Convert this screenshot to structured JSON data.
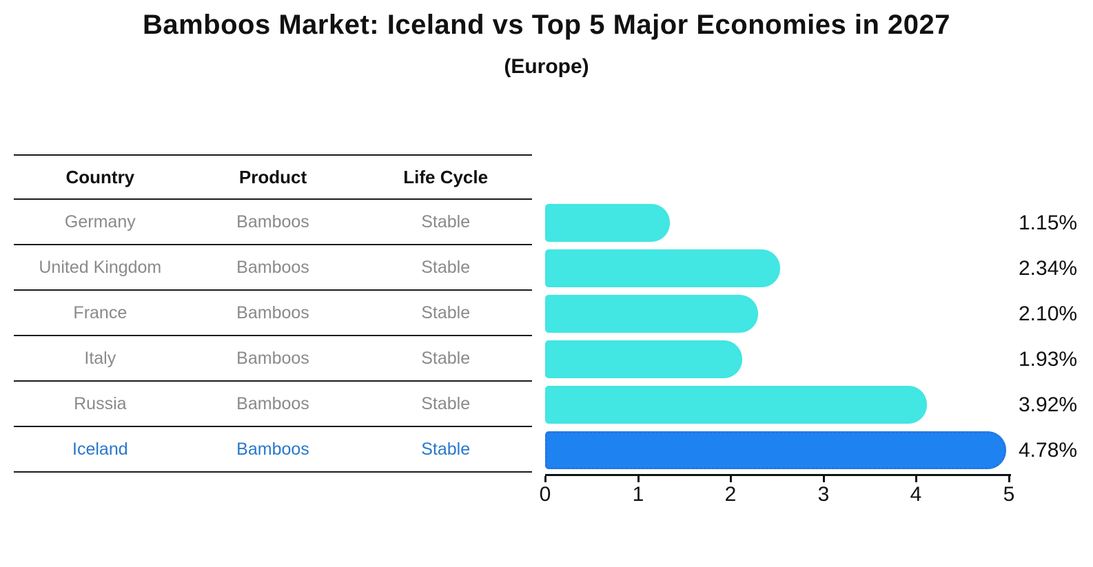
{
  "title": "Bamboos Market: Iceland vs Top 5 Major Economies in 2027",
  "subtitle": "(Europe)",
  "table": {
    "headers": [
      "Country",
      "Product",
      "Life Cycle"
    ],
    "rows": [
      {
        "country": "Germany",
        "product": "Bamboos",
        "life_cycle": "Stable",
        "highlighted": false
      },
      {
        "country": "United Kingdom",
        "product": "Bamboos",
        "life_cycle": "Stable",
        "highlighted": false
      },
      {
        "country": "France",
        "product": "Bamboos",
        "life_cycle": "Stable",
        "highlighted": false
      },
      {
        "country": "Italy",
        "product": "Bamboos",
        "life_cycle": "Stable",
        "highlighted": false
      },
      {
        "country": "Russia",
        "product": "Bamboos",
        "life_cycle": "Stable",
        "highlighted": false
      },
      {
        "country": "Iceland",
        "product": "Bamboos",
        "life_cycle": "Stable",
        "highlighted": true
      }
    ]
  },
  "chart_data": {
    "type": "bar",
    "orientation": "horizontal",
    "title": "Bamboos Market: Iceland vs Top 5 Major Economies in 2027",
    "subtitle": "(Europe)",
    "categories": [
      "Germany",
      "United Kingdom",
      "France",
      "Italy",
      "Russia",
      "Iceland"
    ],
    "values": [
      1.15,
      2.34,
      2.1,
      1.93,
      3.92,
      4.78
    ],
    "value_labels": [
      "1.15%",
      "2.34%",
      "2.10%",
      "1.93%",
      "3.92%",
      "4.78%"
    ],
    "xlim": [
      0,
      5
    ],
    "x_ticks": [
      "0",
      "1",
      "2",
      "3",
      "4",
      "5"
    ],
    "grid": false,
    "legend": false,
    "highlight_index": 5,
    "bar_color": "#42E6E2",
    "highlight_bar_color": "#1E82F0",
    "highlight_row_text_color": "#2878CB",
    "text_color": "#111111",
    "muted_text_color": "#8A8A8A"
  }
}
